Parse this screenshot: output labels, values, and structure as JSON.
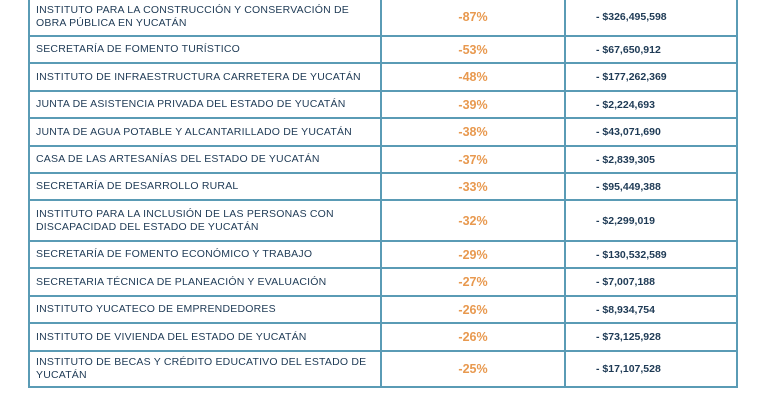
{
  "table": {
    "rows": [
      {
        "name": "INSTITUTO PARA LA CONSTRUCCIÓN Y CONSERVACIÓN DE OBRA PÚBLICA EN YUCATÁN",
        "pct": "-87%",
        "amount": "- $326,495,598"
      },
      {
        "name": "SECRETARÍA DE FOMENTO TURÍSTICO",
        "pct": "-53%",
        "amount": "- $67,650,912"
      },
      {
        "name": "INSTITUTO DE INFRAESTRUCTURA CARRETERA DE YUCATÁN",
        "pct": "-48%",
        "amount": "- $177,262,369"
      },
      {
        "name": "JUNTA DE  ASISTENCIA PRIVADA DEL ESTADO DE YUCATÁN",
        "pct": "-39%",
        "amount": "- $2,224,693"
      },
      {
        "name": "JUNTA DE AGUA POTABLE Y ALCANTARILLADO DE YUCATÁN",
        "pct": "-38%",
        "amount": "- $43,071,690"
      },
      {
        "name": "CASA DE LAS ARTESANÍAS DEL ESTADO DE YUCATÁN",
        "pct": "-37%",
        "amount": "- $2,839,305"
      },
      {
        "name": "SECRETARÍA DE DESARROLLO RURAL",
        "pct": "-33%",
        "amount": "- $95,449,388"
      },
      {
        "name": "INSTITUTO PARA LA INCLUSIÓN DE LAS PERSONAS CON DISCAPACIDAD DEL ESTADO DE YUCATÁN",
        "pct": "-32%",
        "amount": "- $2,299,019"
      },
      {
        "name": "SECRETARÍA DE FOMENTO ECONÓMICO Y TRABAJO",
        "pct": "-29%",
        "amount": "- $130,532,589"
      },
      {
        "name": "SECRETARIA TÉCNICA DE PLANEACIÓN Y EVALUACIÓN",
        "pct": "-27%",
        "amount": "- $7,007,188"
      },
      {
        "name": "INSTITUTO YUCATECO DE EMPRENDEDORES",
        "pct": "-26%",
        "amount": "- $8,934,754"
      },
      {
        "name": "INSTITUTO DE VIVIENDA DEL ESTADO DE YUCATÁN",
        "pct": "-26%",
        "amount": "- $73,125,928"
      },
      {
        "name": "INSTITUTO DE BECAS  Y CRÉDITO EDUCATIVO DEL ESTADO DE YUCATÁN",
        "pct": "-25%",
        "amount": "- $17,107,528"
      }
    ]
  },
  "colors": {
    "border": "#5a9bb5",
    "text": "#1e3a55",
    "percent": "#e8994f"
  }
}
